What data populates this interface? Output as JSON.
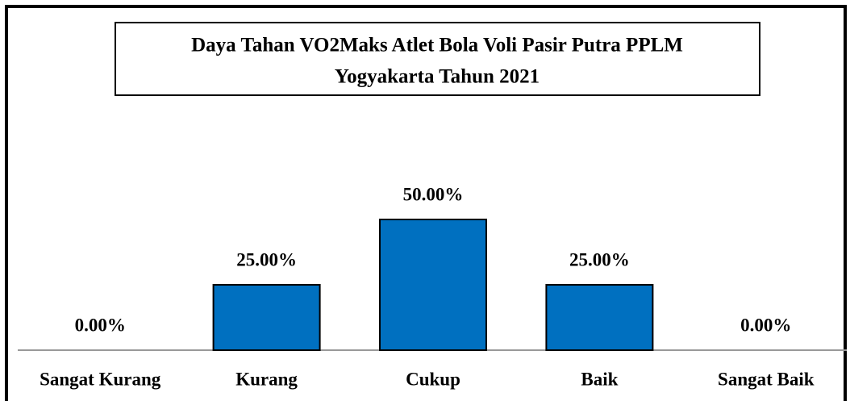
{
  "chart_data": {
    "type": "bar",
    "title": [
      "Daya Tahan VO2Maks Atlet Bola Voli Pasir Putra PPLM",
      "Yogyakarta  Tahun 2021"
    ],
    "categories": [
      "Sangat Kurang",
      "Kurang",
      "Cukup",
      "Baik",
      "Sangat Baik"
    ],
    "values": [
      0,
      25,
      50,
      25,
      0
    ],
    "value_labels": [
      "0.00%",
      "25.00%",
      "50.00%",
      "25.00%",
      "0.00%"
    ],
    "color": "#0070c0"
  }
}
